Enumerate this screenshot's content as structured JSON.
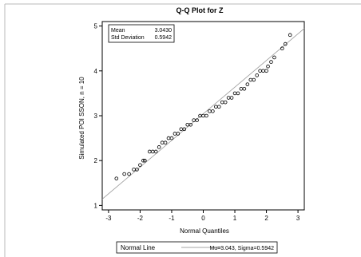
{
  "chart_data": {
    "type": "scatter",
    "title": "Q-Q Plot for Z",
    "xlabel": "Normal Quantiles",
    "ylabel": "Simulated POI SSON, n = 10",
    "xlim": [
      -3.2,
      3.2
    ],
    "ylim": [
      0.9,
      5.1
    ],
    "x_ticks": [
      -3,
      -2,
      -1,
      0,
      1,
      2,
      3
    ],
    "y_ticks": [
      1,
      2,
      3,
      4,
      5
    ],
    "stats": {
      "mean_label": "Mean",
      "mean_value": "3.0430",
      "sd_label": "Std Deviation",
      "sd_value": "0.5942"
    },
    "reference_line": {
      "name": "Normal Line",
      "description": "Mu=3.043, Sigma=0.5942",
      "mu": 3.043,
      "sigma": 0.5942
    },
    "points": [
      [
        -2.75,
        1.6
      ],
      [
        -2.5,
        1.7
      ],
      [
        -2.35,
        1.7
      ],
      [
        -2.2,
        1.8
      ],
      [
        -2.1,
        1.8
      ],
      [
        -2.0,
        1.9
      ],
      [
        -1.9,
        2.0
      ],
      [
        -1.85,
        2.0
      ],
      [
        -1.7,
        2.2
      ],
      [
        -1.6,
        2.2
      ],
      [
        -1.5,
        2.2
      ],
      [
        -1.4,
        2.3
      ],
      [
        -1.3,
        2.4
      ],
      [
        -1.2,
        2.4
      ],
      [
        -1.1,
        2.5
      ],
      [
        -1.0,
        2.5
      ],
      [
        -0.9,
        2.6
      ],
      [
        -0.8,
        2.6
      ],
      [
        -0.7,
        2.7
      ],
      [
        -0.6,
        2.7
      ],
      [
        -0.5,
        2.8
      ],
      [
        -0.4,
        2.8
      ],
      [
        -0.3,
        2.9
      ],
      [
        -0.2,
        2.9
      ],
      [
        -0.1,
        3.0
      ],
      [
        0.0,
        3.0
      ],
      [
        0.1,
        3.0
      ],
      [
        0.2,
        3.1
      ],
      [
        0.3,
        3.1
      ],
      [
        0.4,
        3.2
      ],
      [
        0.5,
        3.2
      ],
      [
        0.6,
        3.3
      ],
      [
        0.7,
        3.3
      ],
      [
        0.8,
        3.4
      ],
      [
        0.9,
        3.4
      ],
      [
        1.0,
        3.5
      ],
      [
        1.1,
        3.5
      ],
      [
        1.2,
        3.6
      ],
      [
        1.3,
        3.6
      ],
      [
        1.4,
        3.7
      ],
      [
        1.5,
        3.8
      ],
      [
        1.6,
        3.8
      ],
      [
        1.7,
        3.9
      ],
      [
        1.8,
        4.0
      ],
      [
        1.9,
        4.0
      ],
      [
        2.0,
        4.0
      ],
      [
        2.05,
        4.1
      ],
      [
        2.15,
        4.2
      ],
      [
        2.25,
        4.3
      ],
      [
        2.5,
        4.5
      ],
      [
        2.6,
        4.6
      ],
      [
        2.75,
        4.8
      ]
    ]
  }
}
